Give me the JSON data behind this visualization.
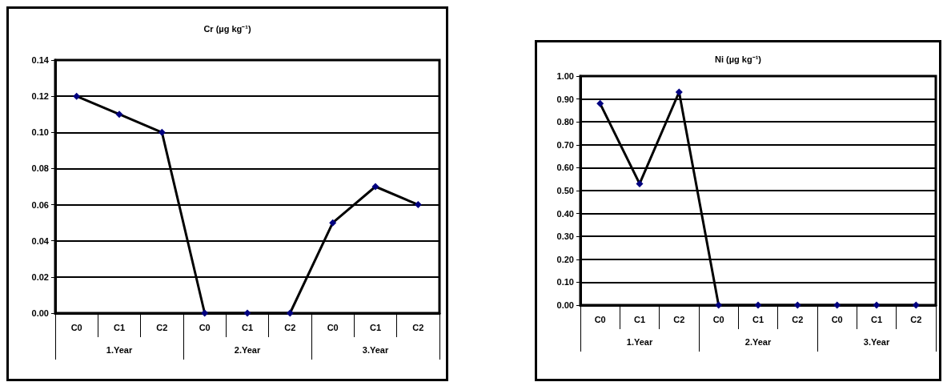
{
  "chart_data": [
    {
      "type": "line",
      "title": "Cr (µg kg⁻¹)",
      "categories": [
        "C0",
        "C1",
        "C2",
        "C0",
        "C1",
        "C2",
        "C0",
        "C1",
        "C2"
      ],
      "series": [
        {
          "color": "#000000",
          "values": [
            0.12,
            0.11,
            0.1,
            0,
            0,
            0,
            0.05,
            0.07,
            0.06
          ]
        }
      ],
      "ylim": [
        0,
        0.14
      ],
      "yticks": [
        {
          "value": 0,
          "label": "0.00"
        },
        {
          "value": 0.02,
          "label": "0.02"
        },
        {
          "value": 0.04,
          "label": "0.04"
        },
        {
          "value": 0.06,
          "label": "0.06"
        },
        {
          "value": 0.08,
          "label": "0.08"
        },
        {
          "value": 0.1,
          "label": "0.10"
        },
        {
          "value": 0.12,
          "label": "0.12"
        },
        {
          "value": 0.14,
          "label": "0.14"
        }
      ],
      "annotations": [
        "1.Year",
        "2.Year",
        "3.Year"
      ],
      "marker": "diamond",
      "grid": "y"
    },
    {
      "type": "line",
      "title": "Ni (µg kg⁻¹)",
      "categories": [
        "C0",
        "C1",
        "C2",
        "C0",
        "C1",
        "C2",
        "C0",
        "C1",
        "C2"
      ],
      "series": [
        {
          "color": "#000000",
          "values": [
            0.88,
            0.53,
            0.93,
            0,
            0,
            0,
            0,
            0,
            0
          ]
        }
      ],
      "ylim": [
        0,
        1
      ],
      "yticks": [
        {
          "value": 0,
          "label": "0.00"
        },
        {
          "value": 0.1,
          "label": "0.10"
        },
        {
          "value": 0.2,
          "label": "0.20"
        },
        {
          "value": 0.3,
          "label": "0.30"
        },
        {
          "value": 0.4,
          "label": "0.40"
        },
        {
          "value": 0.5,
          "label": "0.50"
        },
        {
          "value": 0.6,
          "label": "0.60"
        },
        {
          "value": 0.7,
          "label": "0.70"
        },
        {
          "value": 0.8,
          "label": "0.80"
        },
        {
          "value": 0.9,
          "label": "0.90"
        },
        {
          "value": 1,
          "label": "1.00"
        }
      ],
      "annotations": [
        "1.Year",
        "2.Year",
        "3.Year"
      ],
      "marker": "diamond",
      "grid": "y"
    }
  ]
}
